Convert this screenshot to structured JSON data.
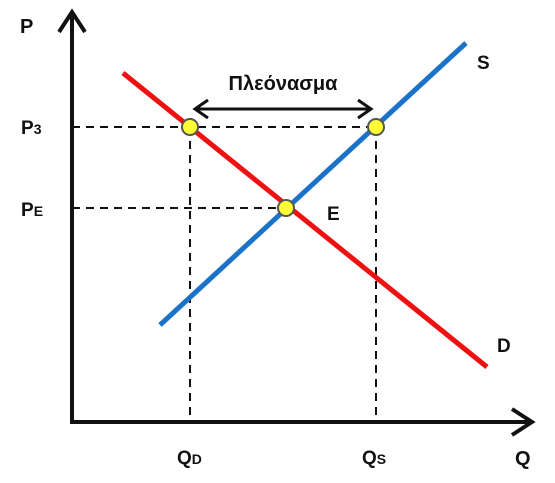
{
  "diagram": {
    "axis_y_label": "P",
    "axis_x_label": "Q",
    "supply_label": "S",
    "demand_label": "D",
    "equilibrium_label": "E",
    "price_high_label": "P",
    "price_high_sub": "3",
    "price_eq_label": "P",
    "price_eq_sub": "E",
    "qty_demanded_label": "Q",
    "qty_demanded_sub": "D",
    "qty_supplied_label": "Q",
    "qty_supplied_sub": "S",
    "surplus_label": "Πλεόνασμα"
  },
  "colors": {
    "supply": "#1a73c8",
    "demand": "#ee1111",
    "axis": "#111111",
    "point_fill": "#ffff33",
    "point_stroke": "#555555",
    "qd_label": "#dd1111",
    "qs_label": "#7030a0"
  }
}
